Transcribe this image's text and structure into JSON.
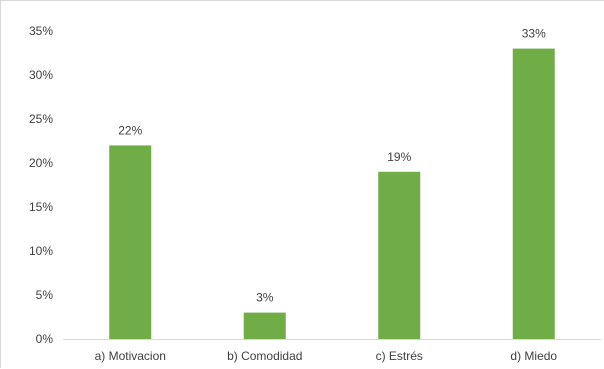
{
  "chart_data": {
    "type": "bar",
    "categories": [
      "a) Motivacion",
      "b) Comodidad",
      "c) Estrés",
      "d) Miedo"
    ],
    "values": [
      22,
      3,
      19,
      33
    ],
    "value_labels": [
      "22%",
      "3%",
      "19%",
      "33%"
    ],
    "y_ticks": [
      "0%",
      "5%",
      "10%",
      "15%",
      "20%",
      "25%",
      "30%",
      "35%"
    ],
    "ylim": [
      0,
      35
    ],
    "unit": "%",
    "grid": false,
    "legend": "none",
    "colors": {
      "bar": "#70ad47",
      "axis": "#d9d9d9",
      "text": "#404040"
    }
  }
}
